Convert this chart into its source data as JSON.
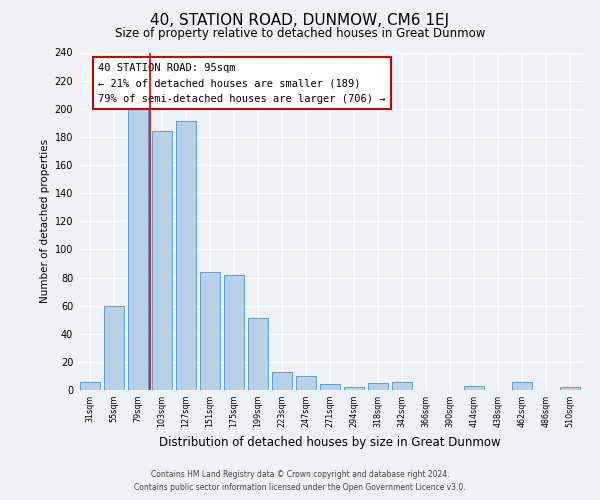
{
  "title": "40, STATION ROAD, DUNMOW, CM6 1EJ",
  "subtitle": "Size of property relative to detached houses in Great Dunmow",
  "xlabel": "Distribution of detached houses by size in Great Dunmow",
  "ylabel": "Number of detached properties",
  "categories": [
    "31sqm",
    "55sqm",
    "79sqm",
    "103sqm",
    "127sqm",
    "151sqm",
    "175sqm",
    "199sqm",
    "223sqm",
    "247sqm",
    "271sqm",
    "294sqm",
    "318sqm",
    "342sqm",
    "366sqm",
    "390sqm",
    "414sqm",
    "438sqm",
    "462sqm",
    "486sqm",
    "510sqm"
  ],
  "values": [
    6,
    60,
    202,
    184,
    191,
    84,
    82,
    51,
    13,
    10,
    4,
    2,
    5,
    6,
    0,
    0,
    3,
    0,
    6,
    0,
    2
  ],
  "bar_color": "#b8d0e8",
  "bar_edge_color": "#5a9fd4",
  "ylim": [
    0,
    240
  ],
  "yticks": [
    0,
    20,
    40,
    60,
    80,
    100,
    120,
    140,
    160,
    180,
    200,
    220,
    240
  ],
  "vline_color": "#cc0000",
  "annotation_title": "40 STATION ROAD: 95sqm",
  "annotation_line1": "← 21% of detached houses are smaller (189)",
  "annotation_line2": "79% of semi-detached houses are larger (706) →",
  "annotation_box_color": "#ffffff",
  "annotation_box_edge_color": "#cc0000",
  "footer_line1": "Contains HM Land Registry data © Crown copyright and database right 2024.",
  "footer_line2": "Contains public sector information licensed under the Open Government Licence v3.0.",
  "background_color": "#eef2f7",
  "grid_color": "#ffffff",
  "title_fontsize": 11,
  "subtitle_fontsize": 8.5,
  "ylabel_fontsize": 7.5,
  "xlabel_fontsize": 8.5
}
